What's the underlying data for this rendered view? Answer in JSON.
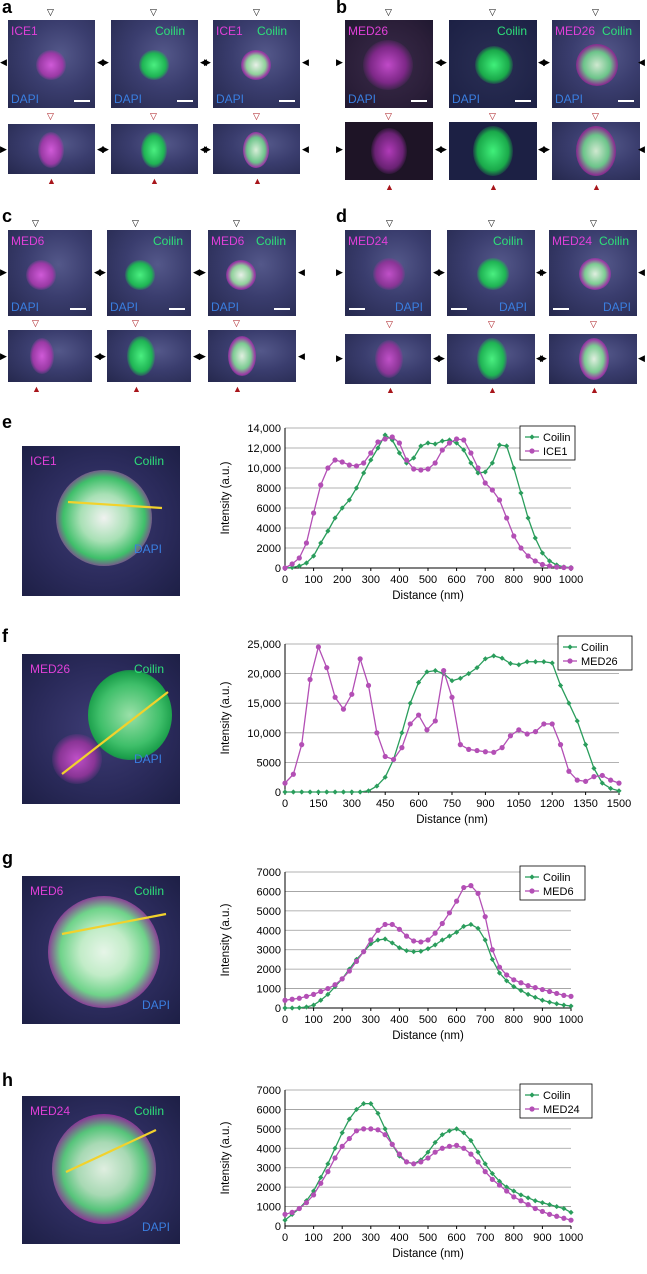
{
  "panel_letters": [
    "a",
    "b",
    "c",
    "d",
    "e",
    "f",
    "g",
    "h"
  ],
  "micrographs": {
    "a": {
      "protein": "ICE1",
      "coilin": "Coilin",
      "dapi": "DAPI"
    },
    "b": {
      "protein": "MED26",
      "coilin": "Coilin",
      "dapi": "DAPI"
    },
    "c": {
      "protein": "MED6",
      "coilin": "Coilin",
      "dapi": "DAPI"
    },
    "d": {
      "protein": "MED24",
      "coilin": "Coilin",
      "dapi": "DAPI"
    }
  },
  "insets": {
    "e": {
      "protein": "ICE1",
      "coilin": "Coilin",
      "dapi": "DAPI"
    },
    "f": {
      "protein": "MED26",
      "coilin": "Coilin",
      "dapi": "DAPI"
    },
    "g": {
      "protein": "MED6",
      "coilin": "Coilin",
      "dapi": "DAPI"
    },
    "h": {
      "protein": "MED24",
      "coilin": "Coilin",
      "dapi": "DAPI"
    }
  },
  "colors": {
    "coilin": "#2a9d5c",
    "protein": "#b34fb5",
    "grid": "#999999"
  },
  "chart_data": [
    {
      "id": "e",
      "type": "line",
      "xlabel": "Distance (nm)",
      "ylabel": "Intensity (a.u.)",
      "xlim": [
        0,
        1000
      ],
      "ylim": [
        0,
        14000
      ],
      "xticks": [
        0,
        100,
        200,
        300,
        400,
        500,
        600,
        700,
        800,
        900,
        1000
      ],
      "xtick_labels": [
        "0",
        "100",
        "200",
        "300",
        "400",
        "500",
        "600",
        "700",
        "800",
        "900",
        "1000"
      ],
      "yticks": [
        0,
        2000,
        4000,
        6000,
        8000,
        10000,
        12000,
        14000
      ],
      "ytick_labels": [
        "0",
        "2000",
        "4000",
        "6000",
        "8000",
        "10,000",
        "12,000",
        "14,000"
      ],
      "x": [
        0,
        25,
        50,
        75,
        100,
        125,
        150,
        175,
        200,
        225,
        250,
        275,
        300,
        325,
        350,
        375,
        400,
        425,
        450,
        475,
        500,
        525,
        550,
        575,
        600,
        625,
        650,
        675,
        700,
        725,
        750,
        775,
        800,
        825,
        850,
        875,
        900,
        925,
        950,
        975,
        1000
      ],
      "series": [
        {
          "name": "Coilin",
          "marker": "diamond",
          "values": [
            0,
            50,
            200,
            500,
            1200,
            2500,
            3700,
            5000,
            6000,
            6800,
            8000,
            9500,
            10800,
            12000,
            13300,
            12800,
            11500,
            10500,
            11000,
            12200,
            12500,
            12400,
            12700,
            12800,
            12500,
            11800,
            10500,
            9500,
            9600,
            10500,
            12300,
            12200,
            10000,
            7500,
            5000,
            3000,
            1500,
            700,
            300,
            100,
            50
          ]
        },
        {
          "name": "ICE1",
          "marker": "circle",
          "values": [
            0,
            400,
            1000,
            2500,
            5500,
            8300,
            10000,
            10800,
            10600,
            10300,
            10200,
            10500,
            11500,
            12600,
            12900,
            13100,
            12500,
            10800,
            9900,
            9800,
            9900,
            10500,
            11800,
            12500,
            12900,
            12800,
            11500,
            10000,
            8500,
            7800,
            6800,
            5000,
            3200,
            2000,
            1200,
            700,
            350,
            200,
            100,
            50,
            0
          ]
        }
      ]
    },
    {
      "id": "f",
      "type": "line",
      "xlabel": "Distance (nm)",
      "ylabel": "Intensity (a.u.)",
      "xlim": [
        0,
        1500
      ],
      "ylim": [
        0,
        25000
      ],
      "xticks": [
        0,
        150,
        300,
        450,
        600,
        750,
        900,
        1050,
        1200,
        1350,
        1500
      ],
      "xtick_labels": [
        "0",
        "150",
        "300",
        "450",
        "600",
        "750",
        "900",
        "1050",
        "1200",
        "1350",
        "1500"
      ],
      "yticks": [
        0,
        5000,
        10000,
        15000,
        20000,
        25000
      ],
      "ytick_labels": [
        "0",
        "5000",
        "10,000",
        "15,000",
        "20,000",
        "25,000"
      ],
      "x": [
        0,
        37.5,
        75,
        112.5,
        150,
        187.5,
        225,
        262.5,
        300,
        337.5,
        375,
        412.5,
        450,
        487.5,
        525,
        562.5,
        600,
        637.5,
        675,
        712.5,
        750,
        787.5,
        825,
        862.5,
        900,
        937.5,
        975,
        1012.5,
        1050,
        1087.5,
        1125,
        1162.5,
        1200,
        1237.5,
        1275,
        1312.5,
        1350,
        1387.5,
        1425,
        1462.5,
        1500
      ],
      "series": [
        {
          "name": "Coilin",
          "marker": "diamond",
          "values": [
            0,
            0,
            0,
            0,
            0,
            0,
            0,
            0,
            0,
            0,
            200,
            1000,
            2500,
            5500,
            10000,
            15000,
            18500,
            20300,
            20500,
            20000,
            18800,
            19200,
            20000,
            21000,
            22500,
            23000,
            22600,
            21700,
            21500,
            22000,
            22000,
            22000,
            21800,
            18000,
            15000,
            12000,
            8000,
            4000,
            1500,
            600,
            200
          ]
        },
        {
          "name": "MED26",
          "marker": "circle",
          "values": [
            1500,
            3000,
            8000,
            19000,
            24500,
            21000,
            16000,
            14000,
            16500,
            22500,
            18000,
            10000,
            6000,
            5500,
            7500,
            11500,
            13000,
            10500,
            12000,
            20500,
            16000,
            8000,
            7200,
            7000,
            6800,
            6700,
            7500,
            9500,
            10500,
            9800,
            10200,
            11500,
            11500,
            8000,
            3500,
            2000,
            1800,
            2600,
            2800,
            2000,
            1500
          ]
        }
      ]
    },
    {
      "id": "g",
      "type": "line",
      "xlabel": "Distance (nm)",
      "ylabel": "Intensity (a.u.)",
      "xlim": [
        0,
        1000
      ],
      "ylim": [
        0,
        7000
      ],
      "xticks": [
        0,
        100,
        200,
        300,
        400,
        500,
        600,
        700,
        800,
        900,
        1000
      ],
      "xtick_labels": [
        "0",
        "100",
        "200",
        "300",
        "400",
        "500",
        "600",
        "700",
        "800",
        "900",
        "1000"
      ],
      "yticks": [
        0,
        1000,
        2000,
        3000,
        4000,
        5000,
        6000,
        7000
      ],
      "ytick_labels": [
        "0",
        "1000",
        "2000",
        "3000",
        "4000",
        "5000",
        "6000",
        "7000"
      ],
      "x": [
        0,
        25,
        50,
        75,
        100,
        125,
        150,
        175,
        200,
        225,
        250,
        275,
        300,
        325,
        350,
        375,
        400,
        425,
        450,
        475,
        500,
        525,
        550,
        575,
        600,
        625,
        650,
        675,
        700,
        725,
        750,
        775,
        800,
        825,
        850,
        875,
        900,
        925,
        950,
        975,
        1000
      ],
      "series": [
        {
          "name": "Coilin",
          "marker": "diamond",
          "values": [
            0,
            0,
            10,
            50,
            150,
            400,
            700,
            1100,
            1500,
            2000,
            2500,
            2900,
            3300,
            3500,
            3550,
            3350,
            3100,
            2950,
            2900,
            2920,
            3050,
            3250,
            3500,
            3700,
            3900,
            4200,
            4300,
            4100,
            3500,
            2500,
            1800,
            1400,
            1100,
            900,
            700,
            550,
            400,
            300,
            220,
            150,
            100
          ]
        },
        {
          "name": "MED6",
          "marker": "circle",
          "values": [
            400,
            450,
            500,
            600,
            700,
            850,
            1000,
            1200,
            1500,
            1900,
            2400,
            2900,
            3500,
            4000,
            4300,
            4300,
            4050,
            3700,
            3450,
            3400,
            3500,
            3850,
            4350,
            4900,
            5500,
            6200,
            6300,
            5900,
            4700,
            3000,
            2100,
            1700,
            1450,
            1300,
            1150,
            1050,
            950,
            850,
            750,
            650,
            600
          ]
        }
      ]
    },
    {
      "id": "h",
      "type": "line",
      "xlabel": "Distance (nm)",
      "ylabel": "Intensity (a.u.)",
      "xlim": [
        0,
        1000
      ],
      "ylim": [
        0,
        7000
      ],
      "xticks": [
        0,
        100,
        200,
        300,
        400,
        500,
        600,
        700,
        800,
        900,
        1000
      ],
      "xtick_labels": [
        "0",
        "100",
        "200",
        "300",
        "400",
        "500",
        "600",
        "700",
        "800",
        "900",
        "1000"
      ],
      "yticks": [
        0,
        1000,
        2000,
        3000,
        4000,
        5000,
        6000,
        7000
      ],
      "ytick_labels": [
        "0",
        "1000",
        "2000",
        "3000",
        "4000",
        "5000",
        "6000",
        "7000"
      ],
      "x": [
        0,
        25,
        50,
        75,
        100,
        125,
        150,
        175,
        200,
        225,
        250,
        275,
        300,
        325,
        350,
        375,
        400,
        425,
        450,
        475,
        500,
        525,
        550,
        575,
        600,
        625,
        650,
        675,
        700,
        725,
        750,
        775,
        800,
        825,
        850,
        875,
        900,
        925,
        950,
        975,
        1000
      ],
      "series": [
        {
          "name": "Coilin",
          "marker": "diamond",
          "values": [
            300,
            600,
            900,
            1300,
            1800,
            2500,
            3200,
            4000,
            4800,
            5500,
            6000,
            6300,
            6300,
            5800,
            5000,
            4200,
            3600,
            3300,
            3200,
            3400,
            3800,
            4300,
            4700,
            4900,
            5000,
            4800,
            4400,
            3800,
            3200,
            2700,
            2300,
            2000,
            1800,
            1600,
            1450,
            1300,
            1200,
            1100,
            1000,
            900,
            700
          ]
        },
        {
          "name": "MED24",
          "marker": "circle",
          "values": [
            600,
            700,
            900,
            1200,
            1600,
            2200,
            2800,
            3500,
            4100,
            4500,
            4900,
            5000,
            5000,
            4950,
            4700,
            4200,
            3700,
            3300,
            3200,
            3300,
            3500,
            3800,
            4000,
            4100,
            4150,
            4000,
            3700,
            3300,
            2800,
            2400,
            2100,
            1800,
            1500,
            1300,
            1100,
            900,
            750,
            600,
            500,
            400,
            300
          ]
        }
      ]
    }
  ]
}
